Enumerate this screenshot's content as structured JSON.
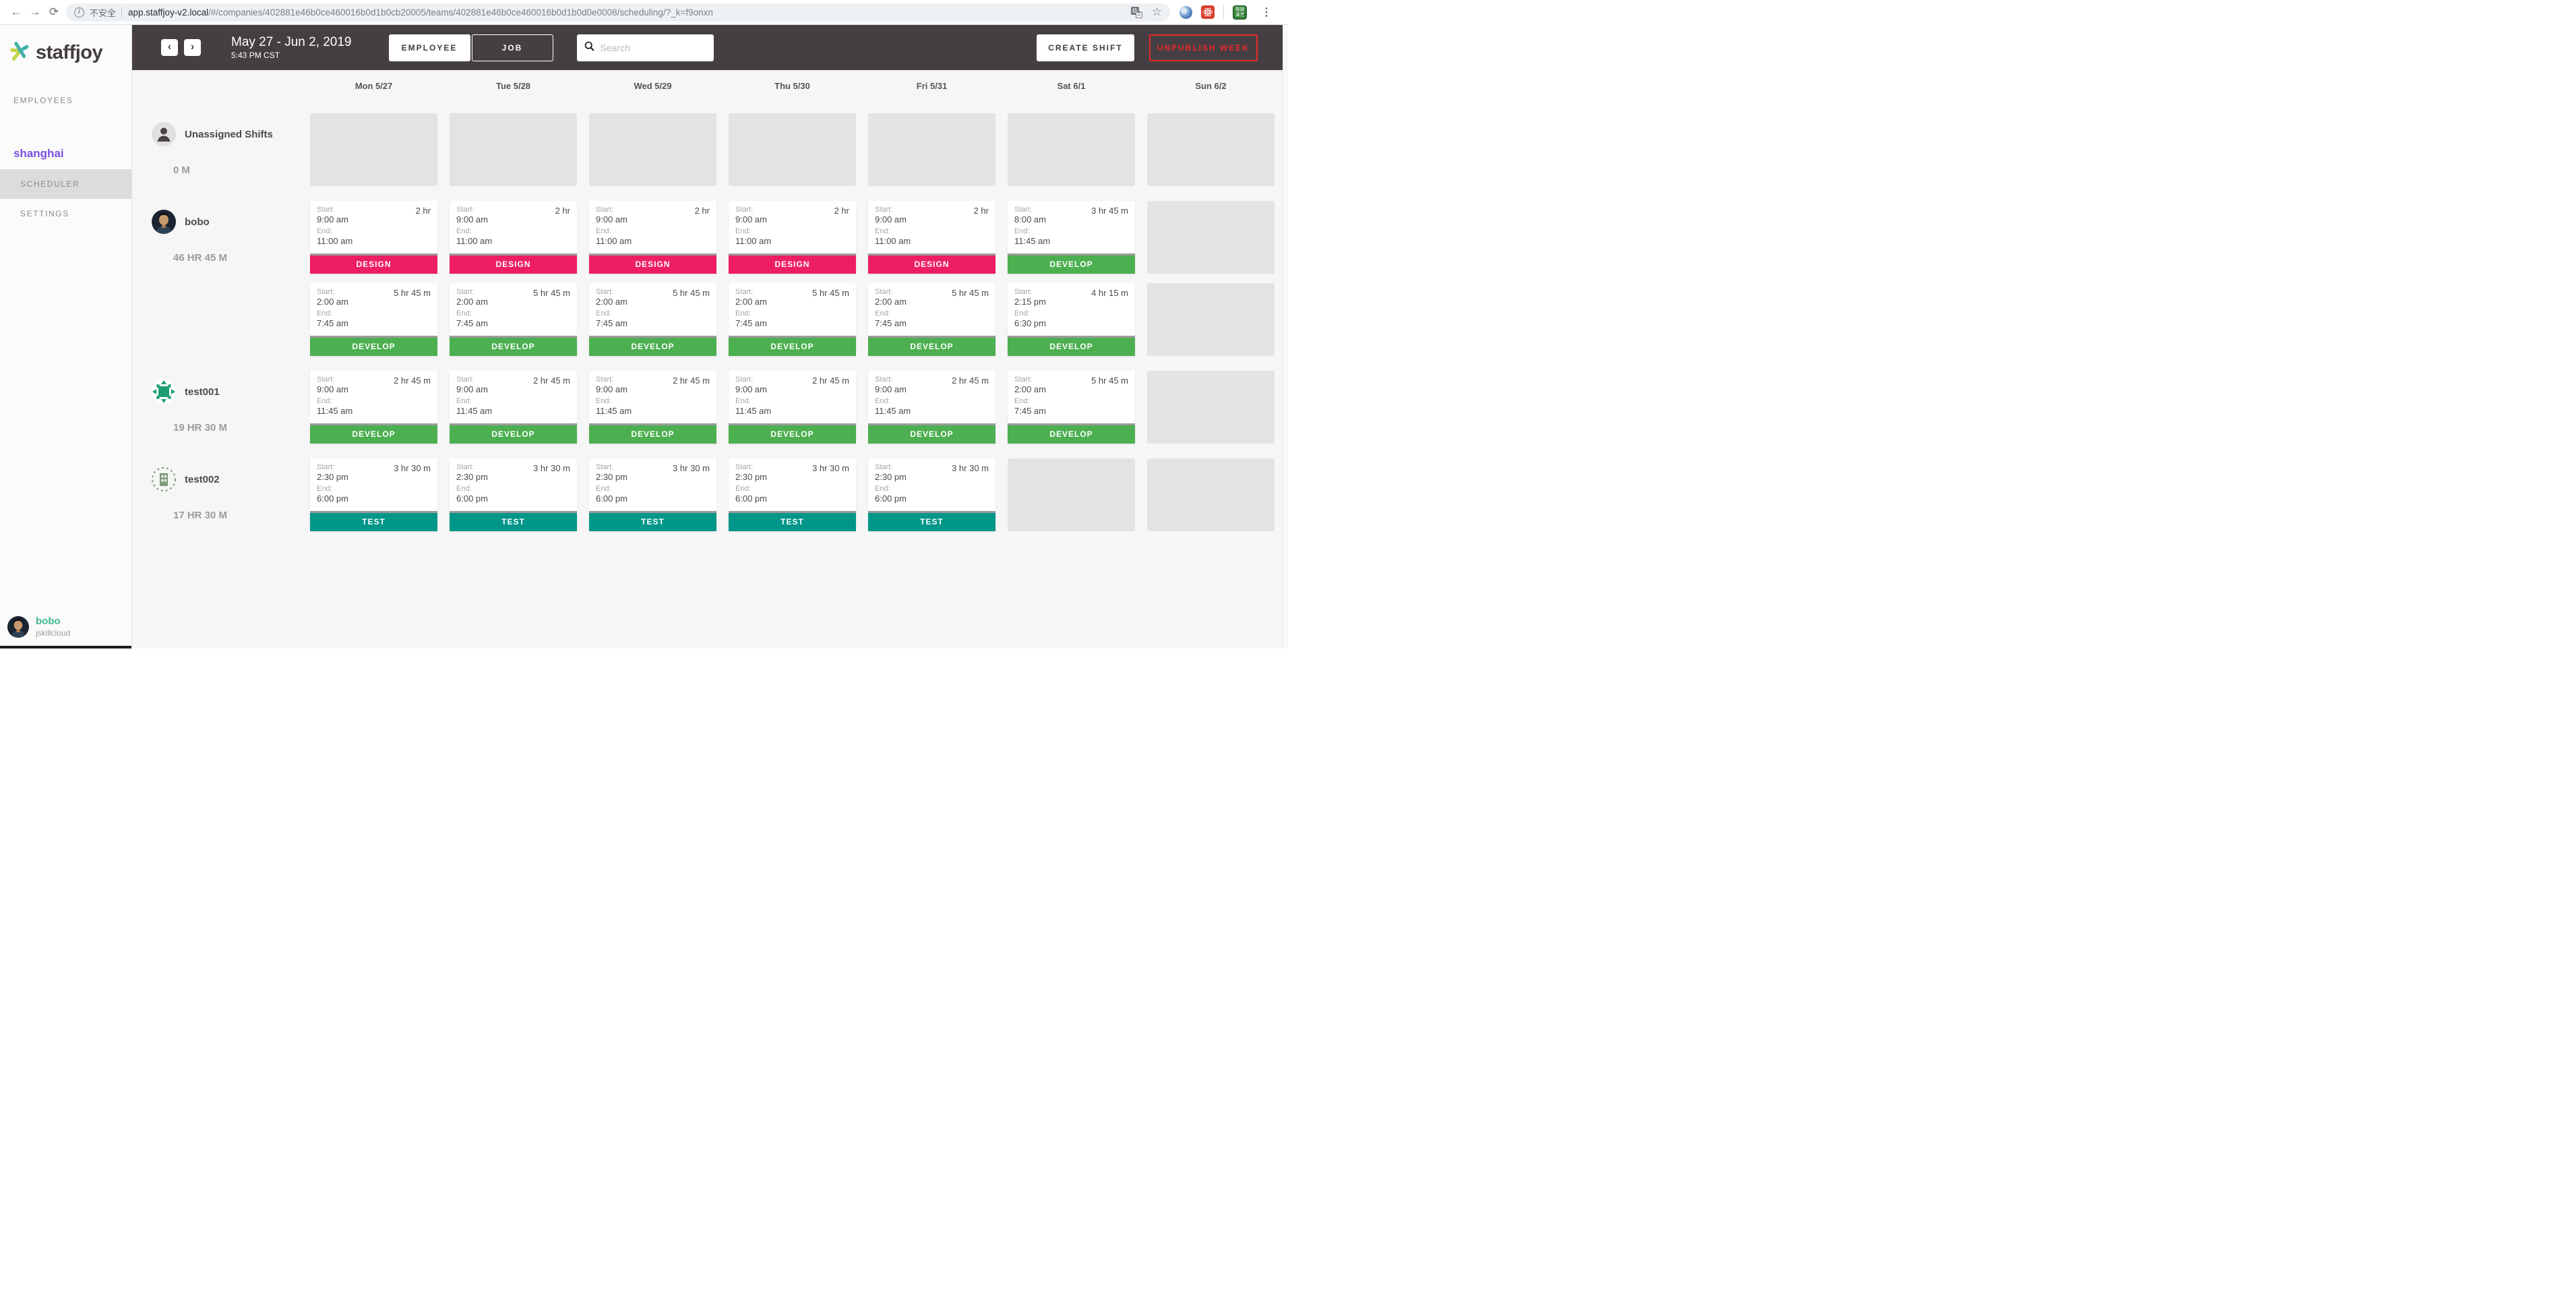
{
  "browser": {
    "security_label": "不安全",
    "url_domain": "app.staffjoy-v2.local",
    "url_path": "/#/companies/402881e46b0ce460016b0d1b0cb20005/teams/402881e46b0ce460016b0d1b0d0e0008/scheduling/?_k=f9onxn",
    "extension_green_text": "微掘课艺"
  },
  "icons": {
    "back": "←",
    "forward": "→",
    "reload": "⟳",
    "info": "i",
    "star": "☆",
    "menu": "⋮",
    "prev": "‹",
    "next": "›",
    "translate_main": "G",
    "translate_sub": "文"
  },
  "sidebar": {
    "logo_text": "staffjoy",
    "nav_label": "EMPLOYEES",
    "team_name": "shanghai",
    "items": [
      {
        "label": "SCHEDULER",
        "active": true
      },
      {
        "label": "SETTINGS",
        "active": false
      }
    ],
    "user": {
      "name": "bobo",
      "company": "jskillcloud"
    }
  },
  "header": {
    "date_range": "May 27 - Jun 2, 2019",
    "time_label": "5:43 PM CST",
    "toggle": [
      {
        "label": "EMPLOYEE",
        "active": true
      },
      {
        "label": "JOB",
        "active": false
      }
    ],
    "search_placeholder": "Search",
    "create_shift_label": "CREATE SHIFT",
    "unpublish_label": "UNPUBLISH WEEK"
  },
  "calendar": {
    "days": [
      "Mon 5/27",
      "Tue 5/28",
      "Wed 5/29",
      "Thu 5/30",
      "Fri 5/31",
      "Sat 6/1",
      "Sun 6/2"
    ],
    "card_labels": {
      "start": "Start:",
      "end": "End:"
    },
    "job_colors": {
      "DESIGN": "#ee1e63",
      "DEVELOP": "#4caf50",
      "TEST": "#009688"
    },
    "rows": [
      {
        "name": "Unassigned Shifts",
        "total": "0 M",
        "avatar": "person",
        "shift_rows": [
          [
            null,
            null,
            null,
            null,
            null,
            null,
            null
          ]
        ]
      },
      {
        "name": "bobo",
        "total": "46 HR 45 M",
        "avatar": "photo",
        "shift_rows": [
          [
            {
              "start": "9:00 am",
              "end": "11:00 am",
              "duration": "2 hr",
              "job": "DESIGN"
            },
            {
              "start": "9:00 am",
              "end": "11:00 am",
              "duration": "2 hr",
              "job": "DESIGN"
            },
            {
              "start": "9:00 am",
              "end": "11:00 am",
              "duration": "2 hr",
              "job": "DESIGN"
            },
            {
              "start": "9:00 am",
              "end": "11:00 am",
              "duration": "2 hr",
              "job": "DESIGN"
            },
            {
              "start": "9:00 am",
              "end": "11:00 am",
              "duration": "2 hr",
              "job": "DESIGN"
            },
            {
              "start": "8:00 am",
              "end": "11:45 am",
              "duration": "3 hr 45 m",
              "job": "DEVELOP"
            },
            null
          ],
          [
            {
              "start": "2:00 am",
              "end": "7:45 am",
              "duration": "5 hr 45 m",
              "job": "DEVELOP"
            },
            {
              "start": "2:00 am",
              "end": "7:45 am",
              "duration": "5 hr 45 m",
              "job": "DEVELOP"
            },
            {
              "start": "2:00 am",
              "end": "7:45 am",
              "duration": "5 hr 45 m",
              "job": "DEVELOP"
            },
            {
              "start": "2:00 am",
              "end": "7:45 am",
              "duration": "5 hr 45 m",
              "job": "DEVELOP"
            },
            {
              "start": "2:00 am",
              "end": "7:45 am",
              "duration": "5 hr 45 m",
              "job": "DEVELOP"
            },
            {
              "start": "2:15 pm",
              "end": "6:30 pm",
              "duration": "4 hr 15 m",
              "job": "DEVELOP"
            },
            null
          ]
        ]
      },
      {
        "name": "test001",
        "total": "19 HR 30 M",
        "avatar": "identicon1",
        "shift_rows": [
          [
            {
              "start": "9:00 am",
              "end": "11:45 am",
              "duration": "2 hr 45 m",
              "job": "DEVELOP"
            },
            {
              "start": "9:00 am",
              "end": "11:45 am",
              "duration": "2 hr 45 m",
              "job": "DEVELOP"
            },
            {
              "start": "9:00 am",
              "end": "11:45 am",
              "duration": "2 hr 45 m",
              "job": "DEVELOP"
            },
            {
              "start": "9:00 am",
              "end": "11:45 am",
              "duration": "2 hr 45 m",
              "job": "DEVELOP"
            },
            {
              "start": "9:00 am",
              "end": "11:45 am",
              "duration": "2 hr 45 m",
              "job": "DEVELOP"
            },
            {
              "start": "2:00 am",
              "end": "7:45 am",
              "duration": "5 hr 45 m",
              "job": "DEVELOP"
            },
            null
          ]
        ]
      },
      {
        "name": "test002",
        "total": "17 HR 30 M",
        "avatar": "identicon2",
        "shift_rows": [
          [
            {
              "start": "2:30 pm",
              "end": "6:00 pm",
              "duration": "3 hr 30 m",
              "job": "TEST"
            },
            {
              "start": "2:30 pm",
              "end": "6:00 pm",
              "duration": "3 hr 30 m",
              "job": "TEST"
            },
            {
              "start": "2:30 pm",
              "end": "6:00 pm",
              "duration": "3 hr 30 m",
              "job": "TEST"
            },
            {
              "start": "2:30 pm",
              "end": "6:00 pm",
              "duration": "3 hr 30 m",
              "job": "TEST"
            },
            {
              "start": "2:30 pm",
              "end": "6:00 pm",
              "duration": "3 hr 30 m",
              "job": "TEST"
            },
            null,
            null
          ]
        ]
      }
    ]
  }
}
